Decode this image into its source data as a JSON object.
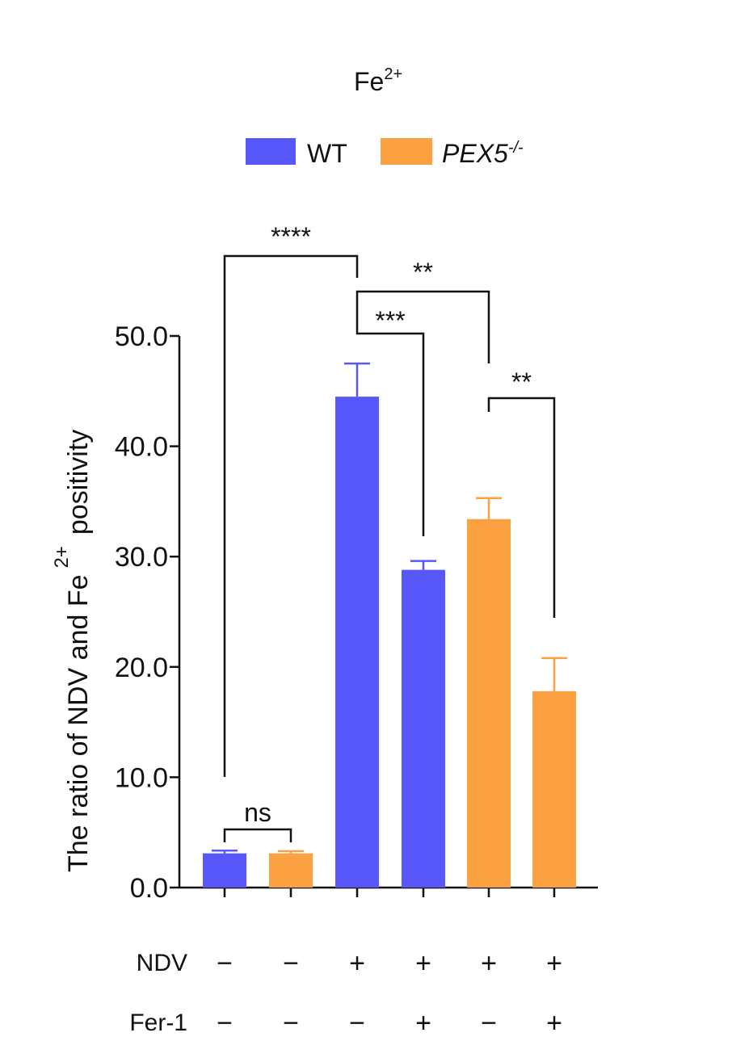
{
  "chart_data": {
    "type": "bar",
    "title": "Fe",
    "title_superscript": "2+",
    "ylabel_main": "The ratio of NDV and Fe",
    "ylabel_superscript": "2+",
    "ylabel_tail": "positivity",
    "ylim": [
      0,
      50
    ],
    "yticks": [
      "0.0",
      "10.0",
      "20.0",
      "30.0",
      "40.0",
      "50.0"
    ],
    "ytick_values": [
      0,
      10,
      20,
      30,
      40,
      50
    ],
    "legend": [
      {
        "name": "WT",
        "color": "#5858fa"
      },
      {
        "name": "PEX5",
        "superscript": "-/-",
        "italic": true,
        "color": "#fba142"
      }
    ],
    "bars": [
      {
        "group": "WT",
        "value": 3.1,
        "error": 0.25,
        "color": "#5858fa"
      },
      {
        "group": "PEX5-/-",
        "value": 3.1,
        "error": 0.2,
        "color": "#fba142"
      },
      {
        "group": "WT",
        "value": 44.5,
        "error": 3.0,
        "color": "#5858fa"
      },
      {
        "group": "WT",
        "value": 28.8,
        "error": 0.8,
        "color": "#5858fa"
      },
      {
        "group": "PEX5-/-",
        "value": 33.4,
        "error": 1.9,
        "color": "#fba142"
      },
      {
        "group": "PEX5-/-",
        "value": 17.8,
        "error": 3.0,
        "color": "#fba142"
      }
    ],
    "conditions": [
      {
        "label": "NDV",
        "values": [
          "−",
          "−",
          "+",
          "+",
          "+",
          "+"
        ]
      },
      {
        "label": "Fer-1",
        "values": [
          "−",
          "−",
          "−",
          "+",
          "−",
          "+"
        ]
      }
    ],
    "comparisons": [
      {
        "from": 0,
        "to": 2,
        "label": "****"
      },
      {
        "from": 2,
        "to": 4,
        "label": "**"
      },
      {
        "from": 2,
        "to": 3,
        "label": "***"
      },
      {
        "from": 4,
        "to": 5,
        "label": "**"
      },
      {
        "from": 0,
        "to": 1,
        "label": "ns"
      }
    ]
  }
}
